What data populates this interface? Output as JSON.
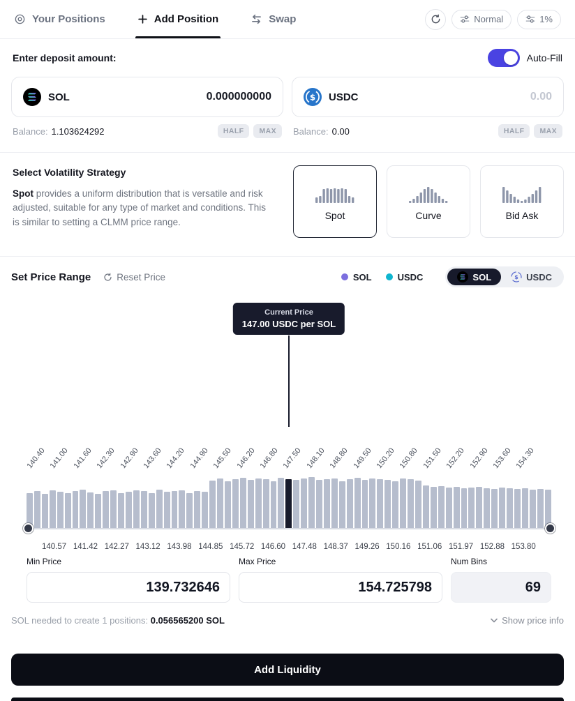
{
  "nav": {
    "tabs": [
      {
        "label": "Your Positions",
        "icon": "positions-icon",
        "active": false
      },
      {
        "label": "Add Position",
        "icon": "plus-icon",
        "active": true
      },
      {
        "label": "Swap",
        "icon": "swap-icon",
        "active": false
      }
    ],
    "refresh_icon": "refresh-timer-icon",
    "priority_mode": "Normal",
    "priority_icon": "priority-fee-icon",
    "slippage": "1%",
    "slippage_icon": "slippage-icon"
  },
  "deposit": {
    "title": "Enter deposit amount:",
    "autofill_label": "Auto-Fill",
    "autofill_on": true,
    "tokens": [
      {
        "symbol": "SOL",
        "icon": "sol-logo",
        "amount": "0.000000000",
        "balance_label": "Balance:",
        "balance": "1.103624292",
        "half": "HALF",
        "max": "MAX"
      },
      {
        "symbol": "USDC",
        "icon": "usdc-logo",
        "amount": "0.00",
        "balance_label": "Balance:",
        "balance": "0.00",
        "half": "HALF",
        "max": "MAX"
      }
    ]
  },
  "strategy": {
    "title": "Select Volatility Strategy",
    "description_bold": "Spot",
    "description_rest": " provides a uniform distribution that is versatile and risk adjusted, suitable for any type of market and conditions. This is similar to setting a CLMM price range.",
    "options": [
      {
        "label": "Spot",
        "icon": "spot-distribution-icon",
        "selected": true
      },
      {
        "label": "Curve",
        "icon": "curve-distribution-icon",
        "selected": false
      },
      {
        "label": "Bid Ask",
        "icon": "bidask-distribution-icon",
        "selected": false
      }
    ]
  },
  "price_range": {
    "title": "Set Price Range",
    "reset_label": "Reset Price",
    "legend": [
      {
        "label": "SOL",
        "color": "#7c6fdf"
      },
      {
        "label": "USDC",
        "color": "#0fb5cf"
      }
    ],
    "quote_toggle": [
      {
        "label": "SOL",
        "selected": true
      },
      {
        "label": "USDC",
        "selected": false
      }
    ],
    "tooltip": {
      "title": "Current Price",
      "value": "147.00 USDC per SOL"
    },
    "min_price": {
      "label": "Min Price",
      "value": "139.732646"
    },
    "max_price": {
      "label": "Max Price",
      "value": "154.725798"
    },
    "num_bins": {
      "label": "Num Bins",
      "value": "69"
    },
    "footer_note_prefix": "SOL needed to create 1 positions: ",
    "footer_note_bold": "0.056565200 SOL",
    "show_price_info": "Show price info"
  },
  "chart_data": {
    "type": "bar",
    "current_price": 147.0,
    "current_price_label": "147.00 USDC per SOL",
    "price_min": 139.732646,
    "price_max": 154.725798,
    "num_bins": 69,
    "current_bin_index": 34,
    "x_axis_labels": [
      "140.40",
      "141.00",
      "141.60",
      "142.30",
      "142.90",
      "143.60",
      "144.20",
      "144.90",
      "145.50",
      "146.20",
      "146.80",
      "147.50",
      "148.10",
      "148.80",
      "149.50",
      "150.20",
      "150.80",
      "151.50",
      "152.20",
      "152.90",
      "153.60",
      "154.30"
    ],
    "slider_labels": [
      "140.57",
      "141.42",
      "142.27",
      "143.12",
      "143.98",
      "144.85",
      "145.72",
      "146.60",
      "147.48",
      "148.37",
      "149.26",
      "150.16",
      "151.06",
      "151.97",
      "152.88",
      "153.80"
    ],
    "bins": [
      50,
      53,
      49,
      54,
      52,
      50,
      53,
      55,
      51,
      49,
      53,
      54,
      50,
      52,
      54,
      53,
      50,
      55,
      52,
      53,
      54,
      50,
      53,
      52,
      68,
      71,
      67,
      70,
      72,
      69,
      71,
      70,
      67,
      72,
      70,
      69,
      71,
      73,
      69,
      70,
      71,
      67,
      70,
      72,
      69,
      71,
      70,
      69,
      67,
      71,
      70,
      68,
      61,
      59,
      60,
      58,
      59,
      57,
      58,
      59,
      57,
      56,
      58,
      57,
      56,
      57,
      55,
      56,
      55
    ]
  },
  "colors": {
    "accent_toggle": "#4a43e2",
    "bar": "#b6bdcd",
    "bar_current": "#181b2c",
    "usdc_blue": "#2775CA",
    "cta_bg": "#0b0d15"
  },
  "cta": {
    "label": "Add Liquidity"
  }
}
